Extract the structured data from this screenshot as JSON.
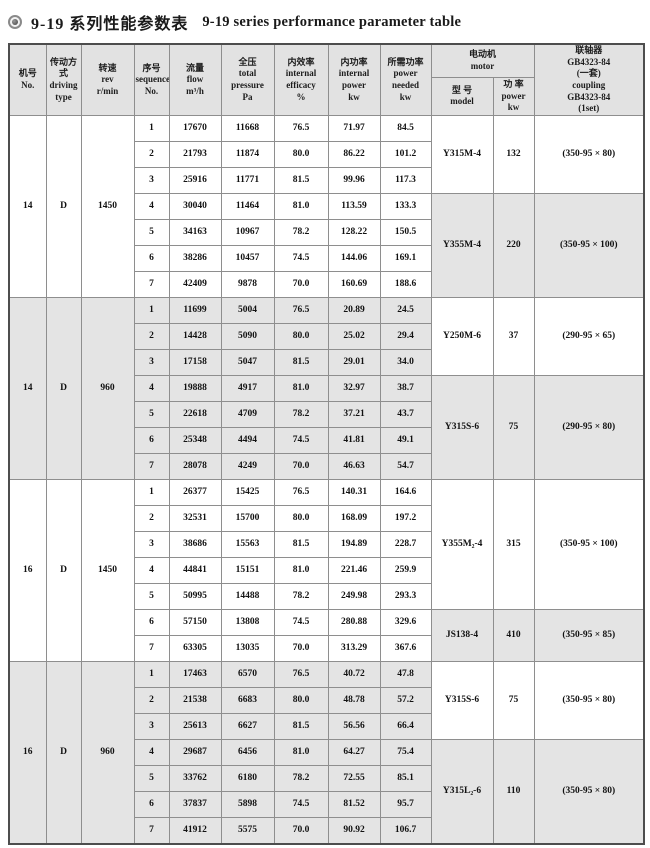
{
  "page": {
    "title_zh": "9-19 系列性能参数表",
    "title_en": "9-19 series performance parameter table"
  },
  "colors": {
    "shade": "#e4e4e4",
    "header_bg": "#e2e2e2",
    "border": "#8e8e8e",
    "outer_border": "#4d4d4d"
  },
  "header": {
    "no": [
      "机号",
      "No."
    ],
    "driving": [
      "传动方式",
      "driving",
      "type"
    ],
    "rev": [
      "转速",
      "rev",
      "r/min"
    ],
    "sequence": [
      "序号",
      "sequence",
      "No."
    ],
    "flow": [
      "流量",
      "flow",
      "m³/h"
    ],
    "pressure": [
      "全压",
      "total",
      "pressure",
      "Pa"
    ],
    "efficacy": [
      "内效率",
      "internal",
      "efficacy",
      "%"
    ],
    "internal_power": [
      "内功率",
      "internal",
      "power",
      "kw"
    ],
    "power_needed": [
      "所需功率",
      "power",
      "needed",
      "kw"
    ],
    "motor": [
      "电动机",
      "motor"
    ],
    "motor_model": [
      "型 号",
      "model"
    ],
    "motor_power": [
      "功 率",
      "power",
      "kw"
    ],
    "coupling": [
      "联轴器",
      "GB4323-84",
      "(一套)",
      "coupling",
      "GB4323-84",
      "(1set)"
    ]
  },
  "blocks": [
    {
      "no": "14",
      "driving": "D",
      "rev": "1450",
      "shade": false,
      "rows": [
        {
          "seq": "1",
          "flow": "17670",
          "pressure": "11668",
          "efficacy": "76.5",
          "internal_power": "71.97",
          "power_needed": "84.5"
        },
        {
          "seq": "2",
          "flow": "21793",
          "pressure": "11874",
          "efficacy": "80.0",
          "internal_power": "86.22",
          "power_needed": "101.2"
        },
        {
          "seq": "3",
          "flow": "25916",
          "pressure": "11771",
          "efficacy": "81.5",
          "internal_power": "99.96",
          "power_needed": "117.3"
        },
        {
          "seq": "4",
          "flow": "30040",
          "pressure": "11464",
          "efficacy": "81.0",
          "internal_power": "113.59",
          "power_needed": "133.3"
        },
        {
          "seq": "5",
          "flow": "34163",
          "pressure": "10967",
          "efficacy": "78.2",
          "internal_power": "128.22",
          "power_needed": "150.5"
        },
        {
          "seq": "6",
          "flow": "38286",
          "pressure": "10457",
          "efficacy": "74.5",
          "internal_power": "144.06",
          "power_needed": "169.1"
        },
        {
          "seq": "7",
          "flow": "42409",
          "pressure": "9878",
          "efficacy": "70.0",
          "internal_power": "160.69",
          "power_needed": "188.6"
        }
      ],
      "motors": [
        {
          "from": 0,
          "span": 3,
          "model": "Y315M-4",
          "power": "132",
          "coupling": "(350-95 × 80)",
          "shade": false
        },
        {
          "from": 3,
          "span": 4,
          "model": "Y355M-4",
          "power": "220",
          "coupling": "(350-95 × 100)",
          "shade": true
        }
      ]
    },
    {
      "no": "14",
      "driving": "D",
      "rev": "960",
      "shade": true,
      "rows": [
        {
          "seq": "1",
          "flow": "11699",
          "pressure": "5004",
          "efficacy": "76.5",
          "internal_power": "20.89",
          "power_needed": "24.5"
        },
        {
          "seq": "2",
          "flow": "14428",
          "pressure": "5090",
          "efficacy": "80.0",
          "internal_power": "25.02",
          "power_needed": "29.4"
        },
        {
          "seq": "3",
          "flow": "17158",
          "pressure": "5047",
          "efficacy": "81.5",
          "internal_power": "29.01",
          "power_needed": "34.0"
        },
        {
          "seq": "4",
          "flow": "19888",
          "pressure": "4917",
          "efficacy": "81.0",
          "internal_power": "32.97",
          "power_needed": "38.7"
        },
        {
          "seq": "5",
          "flow": "22618",
          "pressure": "4709",
          "efficacy": "78.2",
          "internal_power": "37.21",
          "power_needed": "43.7"
        },
        {
          "seq": "6",
          "flow": "25348",
          "pressure": "4494",
          "efficacy": "74.5",
          "internal_power": "41.81",
          "power_needed": "49.1"
        },
        {
          "seq": "7",
          "flow": "28078",
          "pressure": "4249",
          "efficacy": "70.0",
          "internal_power": "46.63",
          "power_needed": "54.7"
        }
      ],
      "motors": [
        {
          "from": 0,
          "span": 3,
          "model": "Y250M-6",
          "power": "37",
          "coupling": "(290-95 × 65)",
          "shade": false
        },
        {
          "from": 3,
          "span": 4,
          "model": "Y315S-6",
          "power": "75",
          "coupling": "(290-95 × 80)",
          "shade": true
        }
      ]
    },
    {
      "no": "16",
      "driving": "D",
      "rev": "1450",
      "shade": false,
      "rows": [
        {
          "seq": "1",
          "flow": "26377",
          "pressure": "15425",
          "efficacy": "76.5",
          "internal_power": "140.31",
          "power_needed": "164.6"
        },
        {
          "seq": "2",
          "flow": "32531",
          "pressure": "15700",
          "efficacy": "80.0",
          "internal_power": "168.09",
          "power_needed": "197.2"
        },
        {
          "seq": "3",
          "flow": "38686",
          "pressure": "15563",
          "efficacy": "81.5",
          "internal_power": "194.89",
          "power_needed": "228.7"
        },
        {
          "seq": "4",
          "flow": "44841",
          "pressure": "15151",
          "efficacy": "81.0",
          "internal_power": "221.46",
          "power_needed": "259.9"
        },
        {
          "seq": "5",
          "flow": "50995",
          "pressure": "14488",
          "efficacy": "78.2",
          "internal_power": "249.98",
          "power_needed": "293.3"
        },
        {
          "seq": "6",
          "flow": "57150",
          "pressure": "13808",
          "efficacy": "74.5",
          "internal_power": "280.88",
          "power_needed": "329.6"
        },
        {
          "seq": "7",
          "flow": "63305",
          "pressure": "13035",
          "efficacy": "70.0",
          "internal_power": "313.29",
          "power_needed": "367.6"
        }
      ],
      "motors": [
        {
          "from": 0,
          "span": 5,
          "model": "Y355M₂-4",
          "power": "315",
          "coupling": "(350-95 × 100)",
          "shade": false
        },
        {
          "from": 5,
          "span": 2,
          "model": "JS138-4",
          "power": "410",
          "coupling": "(350-95 × 85)",
          "shade": true
        }
      ]
    },
    {
      "no": "16",
      "driving": "D",
      "rev": "960",
      "shade": true,
      "rows": [
        {
          "seq": "1",
          "flow": "17463",
          "pressure": "6570",
          "efficacy": "76.5",
          "internal_power": "40.72",
          "power_needed": "47.8"
        },
        {
          "seq": "2",
          "flow": "21538",
          "pressure": "6683",
          "efficacy": "80.0",
          "internal_power": "48.78",
          "power_needed": "57.2"
        },
        {
          "seq": "3",
          "flow": "25613",
          "pressure": "6627",
          "efficacy": "81.5",
          "internal_power": "56.56",
          "power_needed": "66.4"
        },
        {
          "seq": "4",
          "flow": "29687",
          "pressure": "6456",
          "efficacy": "81.0",
          "internal_power": "64.27",
          "power_needed": "75.4"
        },
        {
          "seq": "5",
          "flow": "33762",
          "pressure": "6180",
          "efficacy": "78.2",
          "internal_power": "72.55",
          "power_needed": "85.1"
        },
        {
          "seq": "6",
          "flow": "37837",
          "pressure": "5898",
          "efficacy": "74.5",
          "internal_power": "81.52",
          "power_needed": "95.7"
        },
        {
          "seq": "7",
          "flow": "41912",
          "pressure": "5575",
          "efficacy": "70.0",
          "internal_power": "90.92",
          "power_needed": "106.7"
        }
      ],
      "motors": [
        {
          "from": 0,
          "span": 3,
          "model": "Y315S-6",
          "power": "75",
          "coupling": "(350-95 × 80)",
          "shade": false
        },
        {
          "from": 3,
          "span": 4,
          "model": "Y315L₂-6",
          "power": "110",
          "coupling": "(350-95 × 80)",
          "shade": true
        }
      ]
    }
  ]
}
